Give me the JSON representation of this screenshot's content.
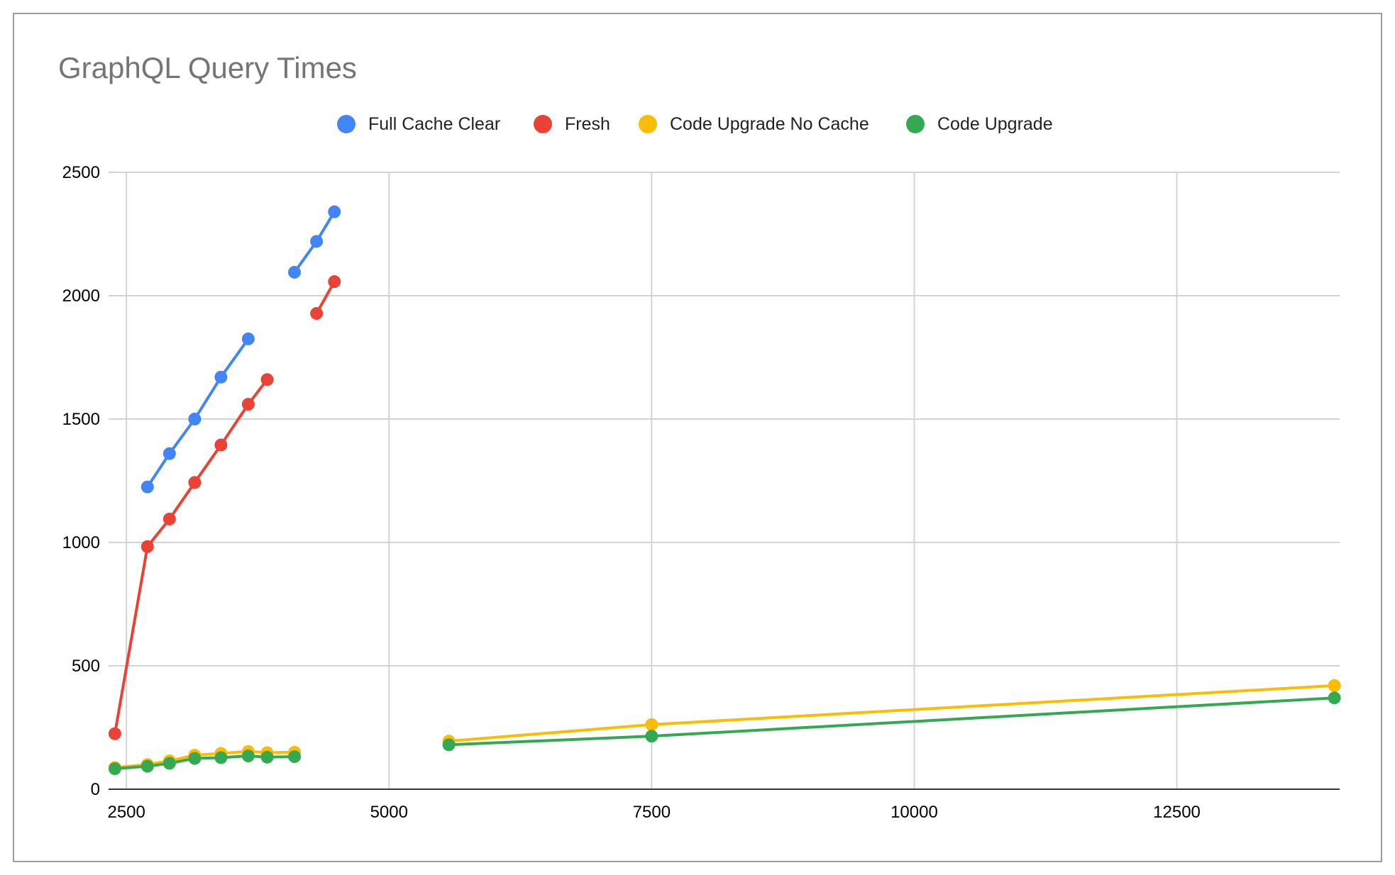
{
  "chart_data": {
    "type": "line",
    "title": "GraphQL Query Times",
    "xlabel": "",
    "ylabel": "",
    "xlim": [
      2330,
      14050
    ],
    "ylim": [
      0,
      2500
    ],
    "x_ticks": [
      "2500",
      "5000",
      "7500",
      "10000",
      "12500"
    ],
    "y_ticks": [
      "0",
      "500",
      "1000",
      "1500",
      "2000",
      "2500"
    ],
    "grid": true,
    "legend_position": "top-center",
    "series": [
      {
        "name": "Full Cache Clear",
        "color": "#4285f4",
        "segments": [
          [
            [
              2700,
              1225
            ],
            [
              2910,
              1360
            ],
            [
              3150,
              1500
            ],
            [
              3400,
              1670
            ],
            [
              3660,
              1825
            ]
          ],
          [
            [
              4100,
              2095
            ],
            [
              4310,
              2220
            ],
            [
              4480,
              2340
            ]
          ]
        ]
      },
      {
        "name": "Fresh",
        "color": "#ea4335",
        "segments": [
          [
            [
              2390,
              225
            ],
            [
              2700,
              983
            ],
            [
              2910,
              1095
            ],
            [
              3150,
              1243
            ],
            [
              3400,
              1395
            ],
            [
              3660,
              1560
            ],
            [
              3840,
              1660
            ]
          ],
          [
            [
              4310,
              1928
            ],
            [
              4480,
              2057
            ]
          ]
        ]
      },
      {
        "name": "Code Upgrade No Cache",
        "color": "#fbbc04",
        "segments": [
          [
            [
              2390,
              88
            ],
            [
              2700,
              100
            ],
            [
              2910,
              115
            ],
            [
              3150,
              138
            ],
            [
              3400,
              145
            ],
            [
              3660,
              153
            ],
            [
              3840,
              148
            ],
            [
              4100,
              150
            ]
          ],
          [
            [
              5570,
              195
            ],
            [
              7500,
              262
            ],
            [
              14000,
              420
            ]
          ]
        ]
      },
      {
        "name": "Code Upgrade",
        "color": "#34a853",
        "segments": [
          [
            [
              2390,
              83
            ],
            [
              2700,
              93
            ],
            [
              2910,
              105
            ],
            [
              3150,
              125
            ],
            [
              3400,
              128
            ],
            [
              3660,
              135
            ],
            [
              3840,
              130
            ],
            [
              4100,
              132
            ]
          ],
          [
            [
              5570,
              180
            ],
            [
              7500,
              215
            ],
            [
              14000,
              370
            ]
          ]
        ]
      }
    ]
  }
}
